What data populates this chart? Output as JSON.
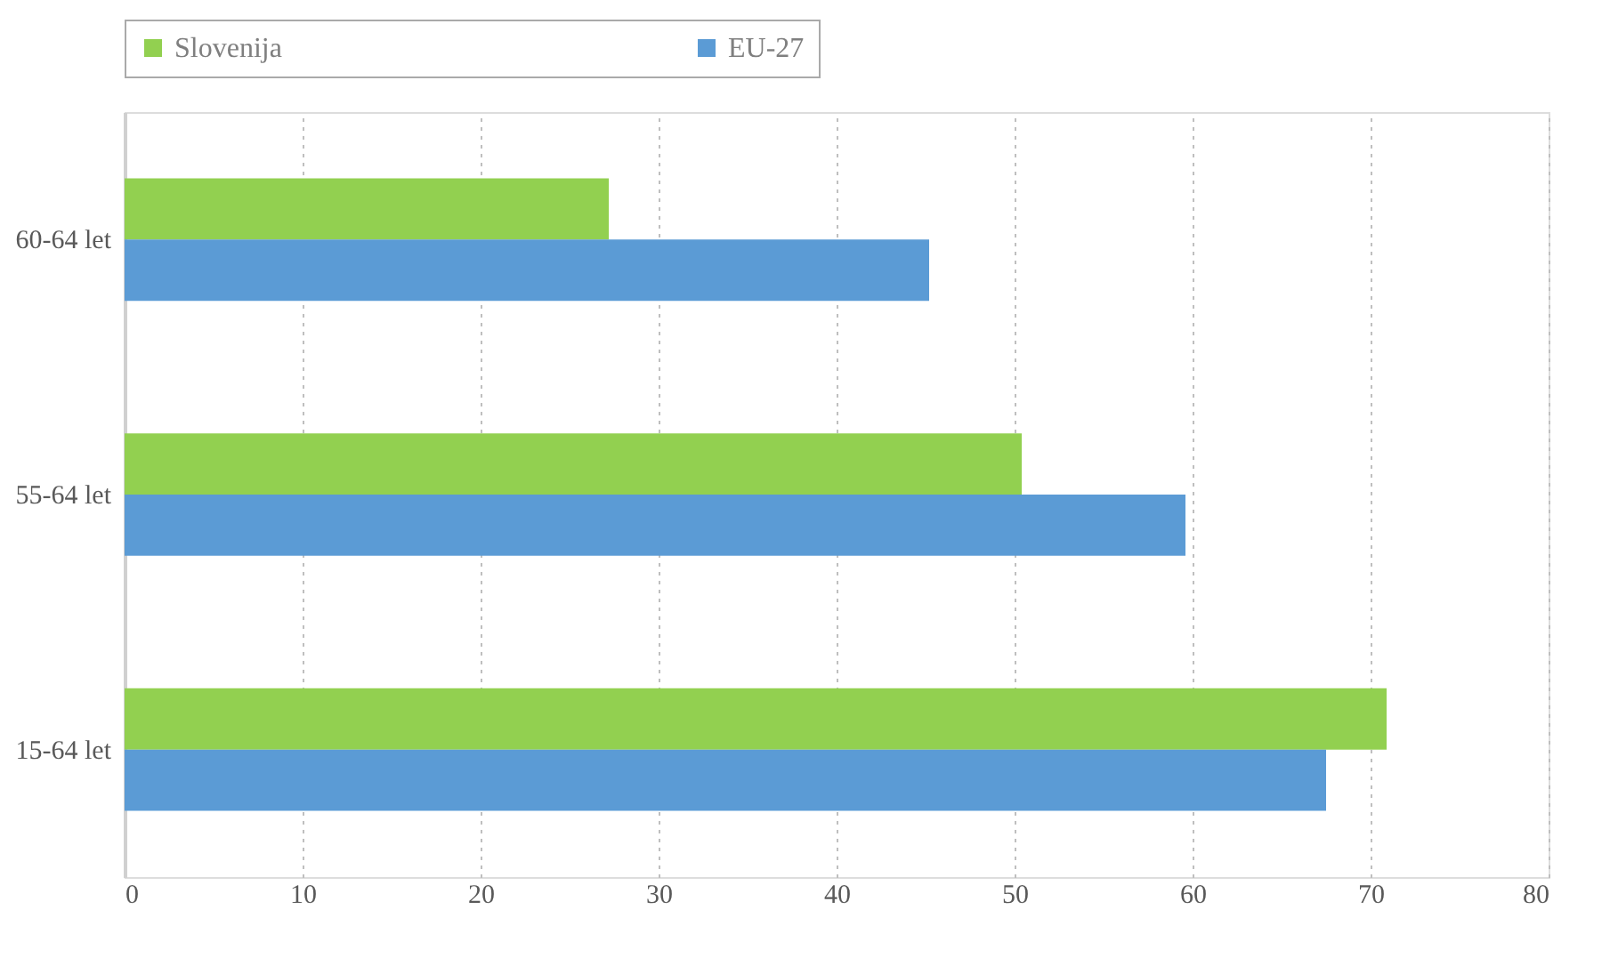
{
  "chart_data": {
    "type": "bar",
    "orientation": "horizontal",
    "categories": [
      "60-64 let",
      "55-64 let",
      "15-64 let"
    ],
    "series": [
      {
        "name": "Slovenija",
        "color": "#92d050",
        "values": [
          27.2,
          50.4,
          70.9
        ]
      },
      {
        "name": "EU-27",
        "color": "#5b9bd5",
        "values": [
          45.2,
          59.6,
          67.5
        ]
      }
    ],
    "xlim": [
      0,
      80
    ],
    "xticks": [
      0,
      10,
      20,
      30,
      40,
      50,
      60,
      70,
      80
    ],
    "grid": "x",
    "legend": "top"
  }
}
